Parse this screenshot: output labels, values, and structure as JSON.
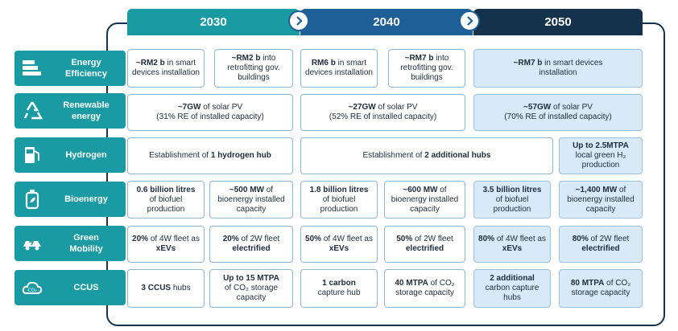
{
  "years": [
    "2030",
    "2040",
    "2050"
  ],
  "rows": [
    {
      "label": "Energy\nEfficiency",
      "icon": "battery-levels-icon"
    },
    {
      "label": "Renewable\nenergy",
      "icon": "recycle-icon"
    },
    {
      "label": "Hydrogen",
      "icon": "fuel-pump-icon"
    },
    {
      "label": "Bioenergy",
      "icon": "bio-canister-icon"
    },
    {
      "label": "Green\nMobility",
      "icon": "electric-car-icon"
    },
    {
      "label": "CCUS",
      "icon": "co2-cloud-icon"
    }
  ],
  "cells": {
    "ee_2030_a": {
      "b": "~RM2 b",
      "t": " in smart devices installation"
    },
    "ee_2030_b": {
      "b": "~RM2 b",
      "t": " into retrofitting gov. buildings"
    },
    "ee_2040_a": {
      "b": "RM6 b",
      "t": " in smart devices installation"
    },
    "ee_2040_b": {
      "b": "~RM7 b",
      "t": " into retrofitting gov. buildings"
    },
    "ee_2050": {
      "b": "~RM7 b",
      "t": " in smart devices installation"
    },
    "re_2030": {
      "b": "~7GW",
      "t": " of solar PV",
      "sub": "(31% RE of installed capacity)"
    },
    "re_2040": {
      "b": "~27GW",
      "t": " of solar PV",
      "sub": "(52% RE of installed capacity)"
    },
    "re_2050": {
      "b": "~57GW",
      "t": " of solar PV",
      "sub": "(70% RE of installed capacity)"
    },
    "h2_2030": {
      "t": "Establishment of ",
      "b": "1 hydrogen hub"
    },
    "h2_2040": {
      "t": "Establishment of ",
      "b": "2 additional hubs"
    },
    "h2_2050": {
      "b": "Up to 2.5MTPA",
      "t": "local green H₂ production"
    },
    "bio_2030_a": {
      "b": "0.6 billion litres",
      "t": "of biofuel production"
    },
    "bio_2030_b": {
      "b": "~500 MW",
      "t": " of bioenergy installed capacity"
    },
    "bio_2040_a": {
      "b": "1.8 billion litres",
      "t": "of biofuel production"
    },
    "bio_2040_b": {
      "b": "~600 MW",
      "t": " of bioenergy installed capacity"
    },
    "bio_2050_a": {
      "b": "3.5 billion litres",
      "t": "of biofuel production"
    },
    "bio_2050_b": {
      "b": "~1,400 MW",
      "t": " of bioenergy installed capacity"
    },
    "gm_2030_a": {
      "b1": "20%",
      "t": " of 4W fleet as ",
      "b2": "xEVs"
    },
    "gm_2030_b": {
      "b1": "20%",
      "t": " of 2W fleet ",
      "b2": "electrified"
    },
    "gm_2040_a": {
      "b1": "50%",
      "t": " of 4W fleet as ",
      "b2": "xEVs"
    },
    "gm_2040_b": {
      "b1": "50%",
      "t": " of 2W fleet ",
      "b2": "electrified"
    },
    "gm_2050_a": {
      "b1": "80%",
      "t": " of 4W fleet as ",
      "b2": "xEVs"
    },
    "gm_2050_b": {
      "b1": "80%",
      "t": " of 2W fleet ",
      "b2": "electrified"
    },
    "cc_2030_a": {
      "b": "3 CCUS",
      "t": " hubs"
    },
    "cc_2030_b": {
      "b": "Up to 15 MTPA",
      "t": "of CO₂ storage capacity"
    },
    "cc_2040_a": {
      "b": "1 carbon",
      "t": "capture hub"
    },
    "cc_2040_b": {
      "b": "40 MTPA",
      "t": " of CO₂ storage capacity"
    },
    "cc_2050_a": {
      "b": "2 additional",
      "t": "carbon capture hubs"
    },
    "cc_2050_b": {
      "b": "80 MTPA",
      "t": " of CO₂ storage capacity"
    }
  }
}
